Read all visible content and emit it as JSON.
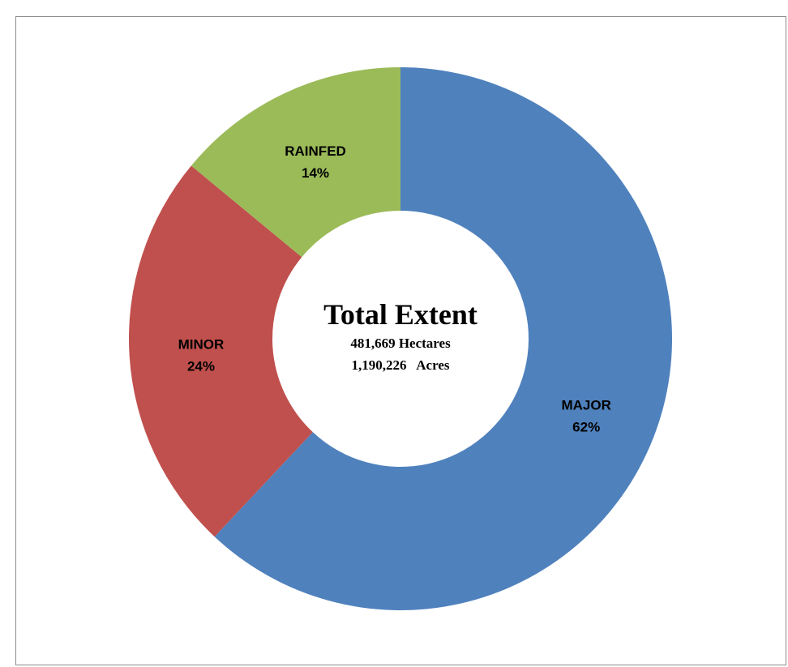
{
  "chart_data": {
    "type": "pie",
    "donut": true,
    "categories": [
      "MAJOR",
      "MINOR",
      "RAINFED"
    ],
    "values": [
      62,
      24,
      14
    ],
    "value_labels": [
      "62%",
      "24%",
      "14%"
    ],
    "colors": [
      "#4f81bd",
      "#c0504d",
      "#9bbb59"
    ],
    "center_text": {
      "title": "Total Extent",
      "line1": "481,669 Hectares",
      "line2": "1,190,226   Acres"
    },
    "title": "",
    "legend": "none"
  }
}
